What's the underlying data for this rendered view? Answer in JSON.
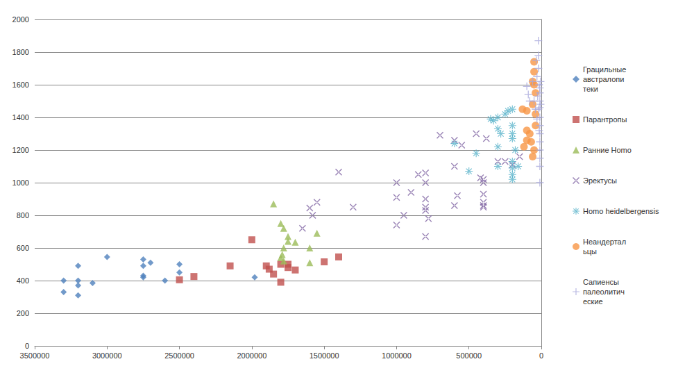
{
  "chart_data": {
    "type": "scatter",
    "xlim": [
      0,
      3500000
    ],
    "xticks": [
      0,
      500000,
      1000000,
      1500000,
      2000000,
      2500000,
      3000000,
      3500000
    ],
    "ylim": [
      0,
      2000
    ],
    "yticks": [
      0,
      200,
      400,
      600,
      800,
      1000,
      1200,
      1400,
      1600,
      1800,
      2000
    ],
    "grid": true,
    "legend": "right",
    "series": [
      {
        "name": "Грацильные австралопитеки",
        "color": "#4f81bd",
        "marker": "diamond",
        "x": [
          3300000,
          3300000,
          3200000,
          3200000,
          3200000,
          3200000,
          3100000,
          3000000,
          2750000,
          2750000,
          2750000,
          2750000,
          2700000,
          2600000,
          2500000,
          2500000,
          1980000
        ],
        "values": [
          400,
          330,
          490,
          400,
          370,
          310,
          385,
          545,
          530,
          490,
          430,
          420,
          510,
          400,
          500,
          450,
          420
        ]
      },
      {
        "name": "Парантропы",
        "color": "#c0504d",
        "marker": "square",
        "x": [
          2500000,
          2400000,
          2150000,
          2000000,
          1900000,
          1880000,
          1850000,
          1800000,
          1800000,
          1750000,
          1750000,
          1700000,
          1500000,
          1400000
        ],
        "values": [
          405,
          425,
          490,
          650,
          490,
          470,
          440,
          500,
          390,
          500,
          480,
          465,
          515,
          545
        ]
      },
      {
        "name": "Ранние Homo",
        "color": "#9bbb59",
        "marker": "triangle",
        "x": [
          1850000,
          1800000,
          1780000,
          1750000,
          1750000,
          1780000,
          1790000,
          1780000,
          1700000,
          1600000,
          1600000,
          1550000,
          1800000
        ],
        "values": [
          870,
          750,
          720,
          670,
          640,
          600,
          560,
          520,
          635,
          600,
          510,
          690,
          540
        ]
      },
      {
        "name": "Эректусы",
        "color": "#8064a2",
        "marker": "x",
        "x": [
          1600000,
          1580000,
          1550000,
          1650000,
          1400000,
          1300000,
          1000000,
          1000000,
          1000000,
          900000,
          950000,
          850000,
          800000,
          800000,
          800000,
          800000,
          800000,
          800000,
          780000,
          700000,
          600000,
          600000,
          600000,
          580000,
          550000,
          450000,
          420000,
          400000,
          400000,
          400000,
          400000,
          400000,
          400000,
          380000,
          300000,
          250000,
          200000,
          150000
        ],
        "values": [
          845,
          800,
          880,
          720,
          1065,
          850,
          1000,
          910,
          740,
          940,
          800,
          1050,
          1060,
          1000,
          900,
          850,
          830,
          670,
          780,
          1290,
          1260,
          1100,
          860,
          920,
          1230,
          1300,
          1030,
          1020,
          1000,
          930,
          880,
          860,
          850,
          1270,
          1130,
          1130,
          1110,
          1160
        ]
      },
      {
        "name": "Homo heidelbergensis",
        "color": "#4bacc6",
        "marker": "asterisk",
        "x": [
          600000,
          500000,
          450000,
          350000,
          330000,
          300000,
          300000,
          300000,
          280000,
          250000,
          230000,
          200000,
          200000,
          200000,
          200000,
          200000,
          200000,
          200000,
          200000,
          180000,
          160000,
          300000
        ],
        "values": [
          1240,
          1070,
          1180,
          1390,
          1380,
          1400,
          1330,
          1220,
          1300,
          1420,
          1440,
          1450,
          1350,
          1300,
          1270,
          1130,
          1090,
          1050,
          1020,
          1200,
          1100,
          1100
        ]
      },
      {
        "name": "Неандертальцы",
        "color": "#f79646",
        "marker": "circle",
        "x": [
          130000,
          100000,
          100000,
          100000,
          120000,
          70000,
          60000,
          50000,
          50000,
          50000,
          60000,
          40000,
          40000,
          50000,
          40000,
          60000,
          80000
        ],
        "values": [
          1450,
          1440,
          1320,
          1260,
          1220,
          1250,
          1160,
          1740,
          1680,
          1600,
          1480,
          1550,
          1350,
          1200,
          1420,
          1620,
          1300
        ]
      },
      {
        "name": "Сапиенсы палеолитические",
        "color": "#a9a9dc",
        "marker": "plus",
        "x": [
          100000,
          90000,
          80000,
          60000,
          50000,
          40000,
          30000,
          20000,
          20000,
          20000,
          15000,
          10000,
          10000,
          10000,
          10000,
          10000,
          10000,
          10000,
          10000,
          10000,
          10000,
          10000,
          10000,
          20000,
          25000,
          5000,
          5000,
          15000,
          30000,
          35000
        ],
        "values": [
          1590,
          1540,
          1500,
          1620,
          1500,
          1450,
          1650,
          1870,
          1780,
          1700,
          1600,
          1580,
          1550,
          1500,
          1460,
          1400,
          1350,
          1300,
          1250,
          1200,
          1150,
          1100,
          1000,
          1450,
          1530,
          1620,
          1480,
          1320,
          1390,
          1750
        ]
      }
    ]
  }
}
